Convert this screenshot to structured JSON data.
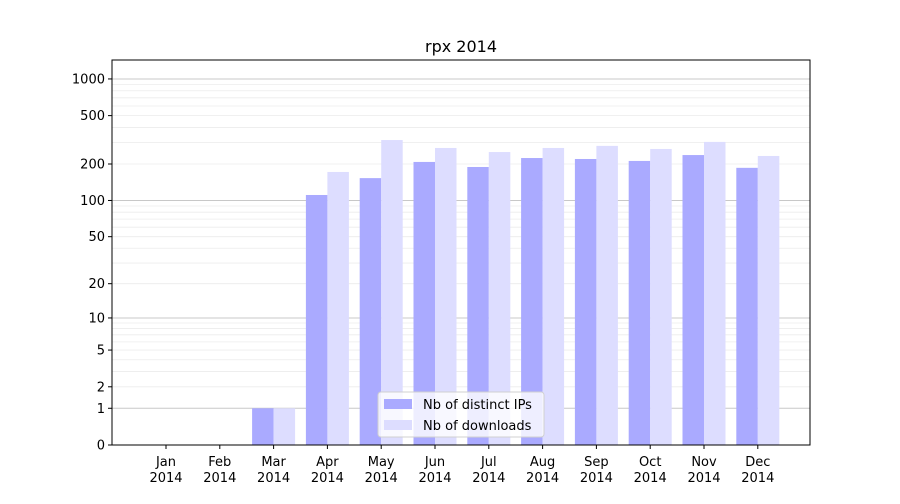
{
  "chart_data": {
    "type": "bar",
    "title": "rpx 2014",
    "xlabel": "",
    "ylabel": "",
    "yscale": "log(1+x)",
    "ylim": [
      0,
      1300
    ],
    "yticks": [
      0,
      1,
      2,
      5,
      10,
      20,
      50,
      100,
      200,
      500,
      1000
    ],
    "grid": true,
    "legend_position": "lower-center",
    "categories": [
      "Jan\n2014",
      "Feb\n2014",
      "Mar\n2014",
      "Apr\n2014",
      "May\n2014",
      "Jun\n2014",
      "Jul\n2014",
      "Aug\n2014",
      "Sep\n2014",
      "Oct\n2014",
      "Nov\n2014",
      "Dec\n2014"
    ],
    "series": [
      {
        "name": "Nb of distinct IPs",
        "color": "#aaaaff",
        "values": [
          0,
          0,
          1,
          111,
          153,
          208,
          189,
          224,
          220,
          212,
          237,
          186
        ]
      },
      {
        "name": "Nb of downloads",
        "color": "#ddddff",
        "values": [
          0,
          0,
          1,
          172,
          315,
          271,
          251,
          271,
          282,
          266,
          304,
          233
        ]
      }
    ]
  }
}
